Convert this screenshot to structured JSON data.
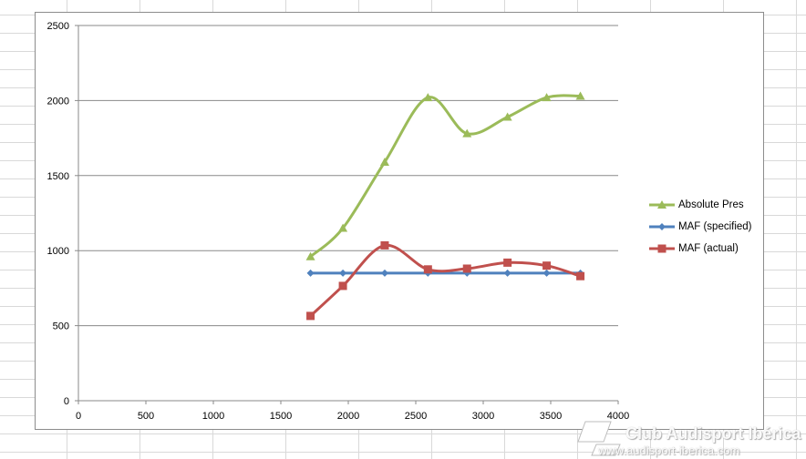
{
  "chart_data": {
    "type": "line",
    "title": "",
    "xlabel": "",
    "ylabel": "",
    "xlim": [
      0,
      4000
    ],
    "ylim": [
      0,
      2500
    ],
    "x_ticks": [
      "0",
      "500",
      "1000",
      "1500",
      "2000",
      "2500",
      "3000",
      "3500",
      "4000"
    ],
    "y_ticks": [
      "0",
      "500",
      "1000",
      "1500",
      "2000",
      "2500"
    ],
    "grid": "horizontal",
    "legend_position": "right",
    "series": [
      {
        "name": "Absolute Pres",
        "color": "#9bbb59",
        "marker": "triangle",
        "x": [
          1720,
          1960,
          2270,
          2590,
          2880,
          3180,
          3470,
          3720
        ],
        "y": [
          960,
          1150,
          1590,
          2020,
          1780,
          1890,
          2020,
          2030
        ]
      },
      {
        "name": "MAF (specified)",
        "color": "#4f81bd",
        "marker": "diamond",
        "x": [
          1720,
          1960,
          2270,
          2590,
          2880,
          3180,
          3470,
          3720
        ],
        "y": [
          850,
          850,
          850,
          850,
          850,
          850,
          850,
          850
        ]
      },
      {
        "name": "MAF (actual)",
        "color": "#c0504d",
        "marker": "square",
        "x": [
          1720,
          1960,
          2270,
          2590,
          2880,
          3180,
          3470,
          3720
        ],
        "y": [
          565,
          765,
          1035,
          875,
          880,
          920,
          900,
          830
        ]
      }
    ]
  },
  "watermark": {
    "title": "Club Audisport Ibérica",
    "url": "www.audisport-iberica.com"
  }
}
